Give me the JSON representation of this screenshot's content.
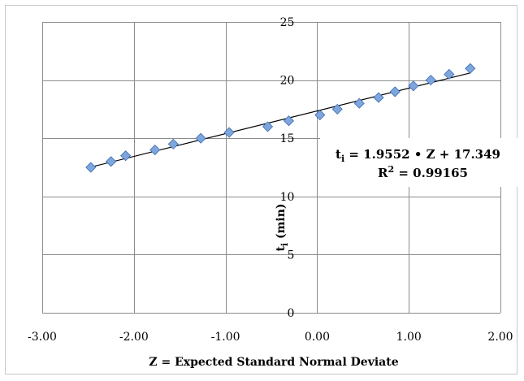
{
  "chart_data": {
    "type": "scatter",
    "title": "",
    "xlabel": "Z = Expected Standard Normal Deviate",
    "ylabel_main": "t",
    "ylabel_sub": "i",
    "ylabel_rest": " (min)",
    "xlim": [
      -3.0,
      2.0
    ],
    "ylim": [
      0,
      25
    ],
    "x_ticks": [
      -3.0,
      -2.0,
      -1.0,
      0.0,
      1.0,
      2.0
    ],
    "x_tick_labels": [
      "-3.00",
      "-2.00",
      "-1.00",
      "0.00",
      "1.00",
      "2.00"
    ],
    "y_ticks": [
      0,
      5,
      10,
      15,
      20,
      25
    ],
    "y_tick_labels": [
      "0",
      "5",
      "10",
      "15",
      "20",
      "25"
    ],
    "grid": true,
    "marker": "diamond",
    "marker_color": "#7ea6dc",
    "marker_edge": "#3b6bb5",
    "trendline_color": "#000000",
    "series": [
      {
        "x": [
          -2.47,
          -2.25,
          -2.09,
          -1.77,
          -1.57,
          -1.27,
          -0.96,
          -0.54,
          -0.31,
          0.03,
          0.22,
          0.46,
          0.67,
          0.85,
          1.05,
          1.24,
          1.44,
          1.67
        ],
        "y": [
          12.5,
          13.0,
          13.5,
          14.0,
          14.5,
          15.0,
          15.5,
          16.0,
          16.5,
          17.0,
          17.5,
          18.0,
          18.5,
          19.0,
          19.5,
          20.0,
          20.5,
          21.0
        ]
      }
    ],
    "trendline": {
      "slope": 1.9552,
      "intercept": 17.349,
      "x_start": -2.47,
      "x_end": 1.67
    },
    "equation": {
      "lhs_main": "t",
      "lhs_sub": "i",
      "rhs": " = 1.9552 • Z + 17.349",
      "r2_main": "R",
      "r2_sup": "2",
      "r2_rhs": " = 0.99165"
    }
  }
}
